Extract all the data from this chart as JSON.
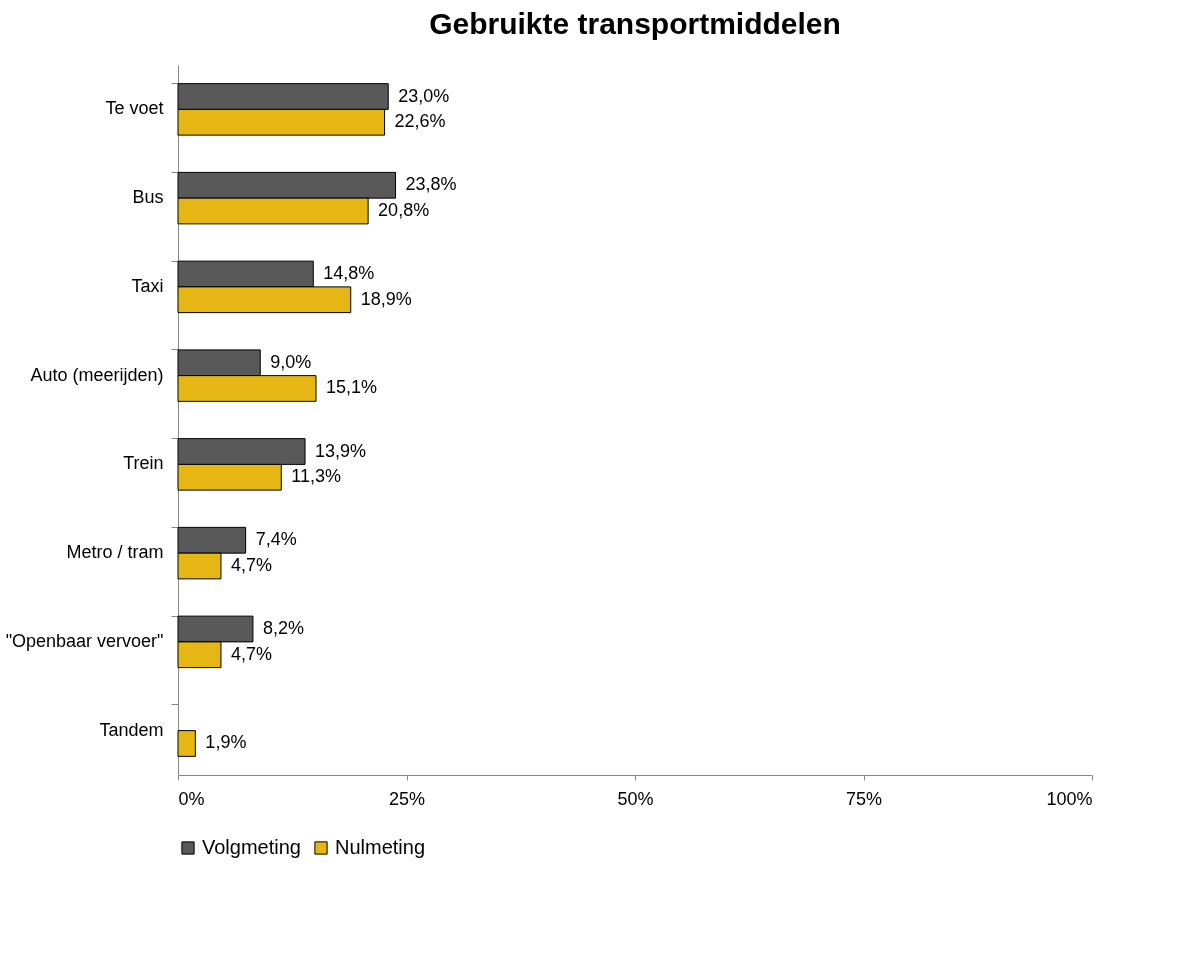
{
  "chart_data": {
    "type": "bar",
    "orientation": "horizontal",
    "title": "Gebruikte transportmiddelen",
    "categories": [
      "Te voet",
      "Bus",
      "Taxi",
      "Auto (meerijden)",
      "Trein",
      "Metro / tram",
      "\"Openbaar vervoer\"",
      "Tandem"
    ],
    "series": [
      {
        "name": "Volgmeting",
        "color": "#595959",
        "values": [
          23.0,
          23.8,
          14.8,
          9.0,
          13.9,
          7.4,
          8.2,
          null
        ],
        "value_labels": [
          "23,0%",
          "23,8%",
          "14,8%",
          "9,0%",
          "13,9%",
          "7,4%",
          "8,2%",
          null
        ]
      },
      {
        "name": "Nulmeting",
        "color": "#e6b714",
        "values": [
          22.6,
          20.8,
          18.9,
          15.1,
          11.3,
          4.7,
          4.7,
          1.9
        ],
        "value_labels": [
          "22,6%",
          "20,8%",
          "18,9%",
          "15,1%",
          "11,3%",
          "4,7%",
          "4,7%",
          "1,9%"
        ]
      }
    ],
    "xlim": [
      0,
      100
    ],
    "xticks": [
      {
        "value": 0,
        "label": "0%"
      },
      {
        "value": 25,
        "label": "25%"
      },
      {
        "value": 50,
        "label": "50%"
      },
      {
        "value": 75,
        "label": "75%"
      },
      {
        "value": 100,
        "label": "100%"
      }
    ],
    "grid": false,
    "legend": "bottom"
  }
}
